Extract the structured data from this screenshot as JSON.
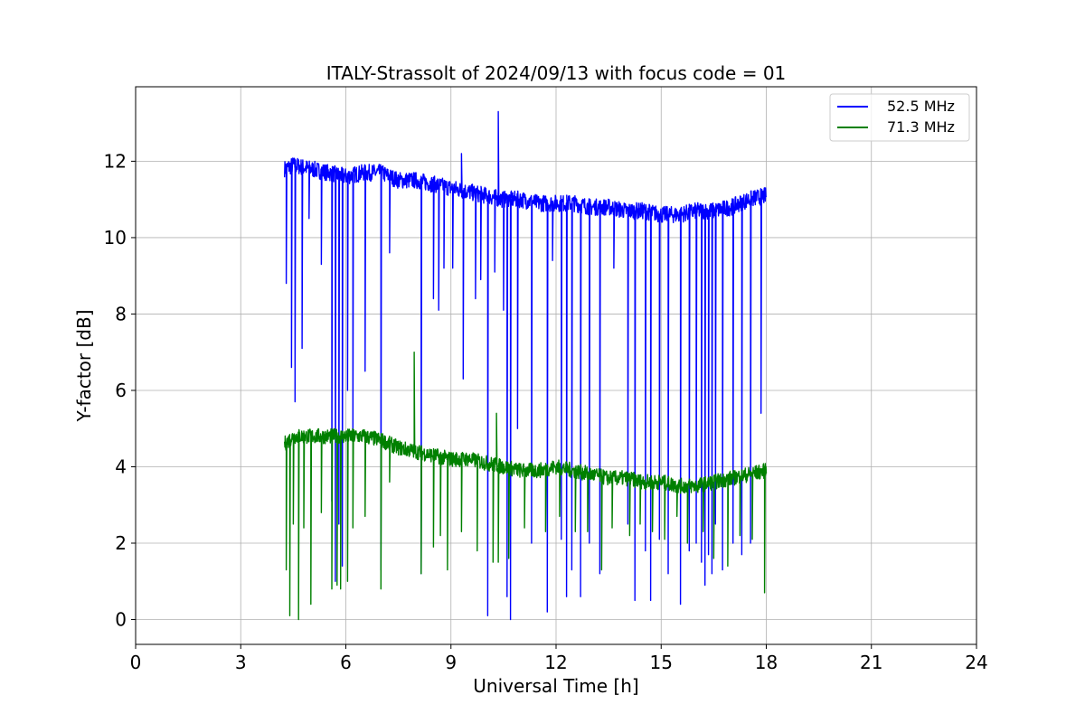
{
  "chart_data": {
    "type": "line",
    "title": "ITALY-Strassolt of 2024/09/13 with focus code = 01",
    "xlabel": "Universal Time [h]",
    "ylabel": "Y-factor [dB]",
    "xlim": [
      0,
      24
    ],
    "ylim": [
      -0.65,
      13.95
    ],
    "xticks": [
      0,
      3,
      6,
      9,
      12,
      15,
      18,
      21,
      24
    ],
    "yticks": [
      0,
      2,
      4,
      6,
      8,
      10,
      12
    ],
    "grid": true,
    "legend_position": "top-right",
    "series": [
      {
        "name": "52.5 MHz",
        "color": "#0000ff",
        "x": [
          4.25,
          4.5,
          5.0,
          5.5,
          6.0,
          6.5,
          7.0,
          7.5,
          8.0,
          8.5,
          9.0,
          9.5,
          10.0,
          10.5,
          11.0,
          11.5,
          12.0,
          12.5,
          13.0,
          13.5,
          14.0,
          14.5,
          15.0,
          15.5,
          16.0,
          16.5,
          17.0,
          17.5,
          18.0
        ],
        "values": [
          11.8,
          11.9,
          11.8,
          11.7,
          11.6,
          11.7,
          11.7,
          11.5,
          11.5,
          11.4,
          11.3,
          11.2,
          11.1,
          11.0,
          11.0,
          10.9,
          10.9,
          10.9,
          10.8,
          10.8,
          10.7,
          10.7,
          10.6,
          10.6,
          10.7,
          10.7,
          10.8,
          11.0,
          11.1
        ],
        "dips": [
          {
            "x": 4.3,
            "y": 8.8
          },
          {
            "x": 4.45,
            "y": 6.6
          },
          {
            "x": 4.55,
            "y": 5.7
          },
          {
            "x": 4.75,
            "y": 7.1
          },
          {
            "x": 4.95,
            "y": 10.5
          },
          {
            "x": 5.3,
            "y": 9.3
          },
          {
            "x": 5.6,
            "y": 3.1
          },
          {
            "x": 5.7,
            "y": 1.0
          },
          {
            "x": 5.8,
            "y": 2.5
          },
          {
            "x": 5.9,
            "y": 1.4
          },
          {
            "x": 6.05,
            "y": 6.0
          },
          {
            "x": 6.2,
            "y": 4.7
          },
          {
            "x": 6.55,
            "y": 6.5
          },
          {
            "x": 7.0,
            "y": 1.3
          },
          {
            "x": 7.25,
            "y": 9.6
          },
          {
            "x": 8.15,
            "y": 1.2
          },
          {
            "x": 8.5,
            "y": 8.4
          },
          {
            "x": 8.65,
            "y": 8.1
          },
          {
            "x": 8.8,
            "y": 9.2
          },
          {
            "x": 9.05,
            "y": 9.2
          },
          {
            "x": 9.35,
            "y": 6.3
          },
          {
            "x": 9.7,
            "y": 8.4
          },
          {
            "x": 9.85,
            "y": 8.9
          },
          {
            "x": 10.05,
            "y": 0.1
          },
          {
            "x": 10.25,
            "y": 9.1
          },
          {
            "x": 10.5,
            "y": 8.1
          },
          {
            "x": 10.6,
            "y": 0.6
          },
          {
            "x": 10.7,
            "y": 0.0
          },
          {
            "x": 10.9,
            "y": 5.0
          },
          {
            "x": 11.3,
            "y": 2.0
          },
          {
            "x": 11.75,
            "y": 0.2
          },
          {
            "x": 11.9,
            "y": 9.4
          },
          {
            "x": 12.15,
            "y": 2.1
          },
          {
            "x": 12.3,
            "y": 0.6
          },
          {
            "x": 12.45,
            "y": 1.3
          },
          {
            "x": 12.7,
            "y": 0.6
          },
          {
            "x": 12.95,
            "y": 2.0
          },
          {
            "x": 13.25,
            "y": 1.2
          },
          {
            "x": 13.65,
            "y": 9.2
          },
          {
            "x": 14.05,
            "y": 2.5
          },
          {
            "x": 14.25,
            "y": 0.5
          },
          {
            "x": 14.55,
            "y": 1.8
          },
          {
            "x": 14.7,
            "y": 0.5
          },
          {
            "x": 14.95,
            "y": 2.1
          },
          {
            "x": 15.2,
            "y": 1.2
          },
          {
            "x": 15.55,
            "y": 0.4
          },
          {
            "x": 15.8,
            "y": 1.8
          },
          {
            "x": 16.0,
            "y": 2.0
          },
          {
            "x": 16.15,
            "y": 1.5
          },
          {
            "x": 16.25,
            "y": 0.9
          },
          {
            "x": 16.35,
            "y": 1.7
          },
          {
            "x": 16.45,
            "y": 1.2
          },
          {
            "x": 16.55,
            "y": 2.5
          },
          {
            "x": 16.75,
            "y": 1.3
          },
          {
            "x": 17.05,
            "y": 2.0
          },
          {
            "x": 17.3,
            "y": 1.7
          },
          {
            "x": 17.55,
            "y": 2.0
          },
          {
            "x": 17.85,
            "y": 5.4
          }
        ],
        "spikes": [
          {
            "x": 9.3,
            "y": 12.2
          },
          {
            "x": 10.35,
            "y": 13.3
          }
        ]
      },
      {
        "name": "71.3 MHz",
        "color": "#008000",
        "x": [
          4.25,
          4.5,
          5.0,
          5.5,
          6.0,
          6.5,
          7.0,
          7.5,
          8.0,
          8.5,
          9.0,
          9.5,
          10.0,
          10.5,
          11.0,
          11.5,
          12.0,
          12.5,
          13.0,
          13.5,
          14.0,
          14.5,
          15.0,
          15.5,
          16.0,
          16.5,
          17.0,
          17.5,
          18.0
        ],
        "values": [
          4.6,
          4.8,
          4.8,
          4.8,
          4.8,
          4.8,
          4.7,
          4.5,
          4.4,
          4.3,
          4.2,
          4.2,
          4.1,
          4.0,
          3.9,
          3.9,
          4.0,
          3.9,
          3.8,
          3.7,
          3.7,
          3.6,
          3.6,
          3.5,
          3.5,
          3.6,
          3.7,
          3.8,
          3.9
        ],
        "dips": [
          {
            "x": 4.3,
            "y": 1.3
          },
          {
            "x": 4.4,
            "y": 0.1
          },
          {
            "x": 4.5,
            "y": 2.5
          },
          {
            "x": 4.65,
            "y": 0.0
          },
          {
            "x": 4.8,
            "y": 2.4
          },
          {
            "x": 5.0,
            "y": 0.4
          },
          {
            "x": 5.3,
            "y": 2.8
          },
          {
            "x": 5.6,
            "y": 0.8
          },
          {
            "x": 5.75,
            "y": 0.9
          },
          {
            "x": 5.85,
            "y": 0.8
          },
          {
            "x": 6.05,
            "y": 1.0
          },
          {
            "x": 6.2,
            "y": 2.4
          },
          {
            "x": 6.55,
            "y": 2.7
          },
          {
            "x": 7.0,
            "y": 0.8
          },
          {
            "x": 7.25,
            "y": 3.6
          },
          {
            "x": 8.15,
            "y": 1.2
          },
          {
            "x": 8.5,
            "y": 1.9
          },
          {
            "x": 8.7,
            "y": 2.2
          },
          {
            "x": 8.9,
            "y": 1.3
          },
          {
            "x": 9.3,
            "y": 2.3
          },
          {
            "x": 9.75,
            "y": 1.8
          },
          {
            "x": 10.2,
            "y": 1.5
          },
          {
            "x": 10.35,
            "y": 1.5
          },
          {
            "x": 10.65,
            "y": 1.6
          },
          {
            "x": 11.1,
            "y": 2.4
          },
          {
            "x": 11.7,
            "y": 2.3
          },
          {
            "x": 12.1,
            "y": 2.7
          },
          {
            "x": 12.55,
            "y": 2.3
          },
          {
            "x": 12.9,
            "y": 2.3
          },
          {
            "x": 13.3,
            "y": 1.3
          },
          {
            "x": 13.6,
            "y": 2.4
          },
          {
            "x": 14.1,
            "y": 2.2
          },
          {
            "x": 14.4,
            "y": 2.5
          },
          {
            "x": 14.75,
            "y": 2.3
          },
          {
            "x": 15.1,
            "y": 2.1
          },
          {
            "x": 15.45,
            "y": 2.7
          },
          {
            "x": 15.75,
            "y": 2.0
          },
          {
            "x": 16.2,
            "y": 2.3
          },
          {
            "x": 16.5,
            "y": 1.6
          },
          {
            "x": 16.9,
            "y": 1.4
          },
          {
            "x": 17.25,
            "y": 2.2
          },
          {
            "x": 17.6,
            "y": 2.1
          },
          {
            "x": 17.95,
            "y": 0.7
          }
        ],
        "spikes": [
          {
            "x": 7.95,
            "y": 7.0
          },
          {
            "x": 10.3,
            "y": 5.4
          }
        ]
      }
    ]
  }
}
